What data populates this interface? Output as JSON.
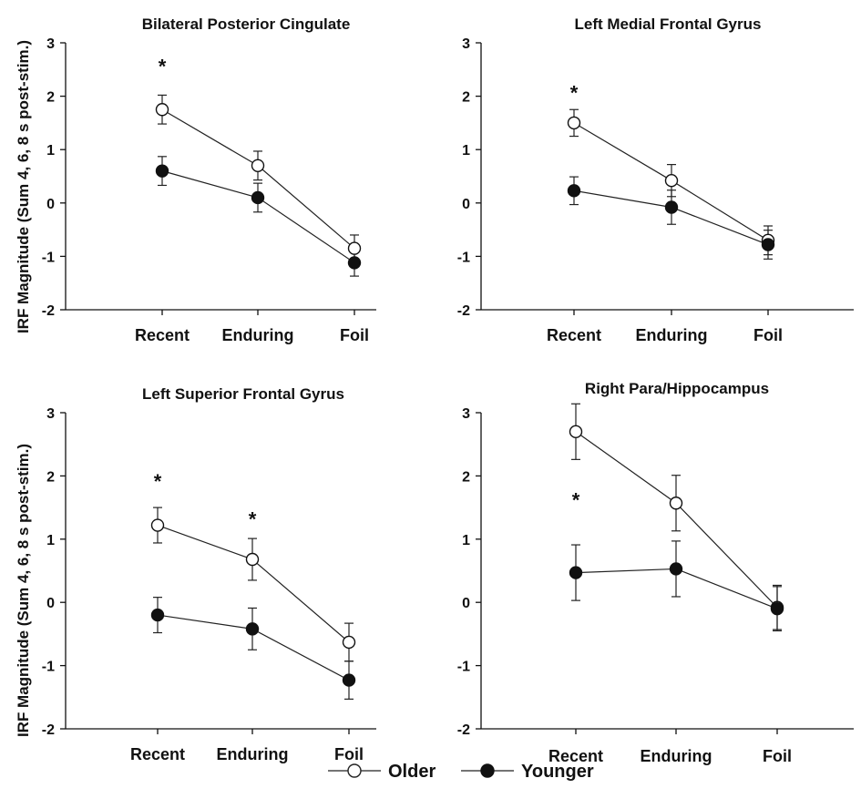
{
  "chart_data": {
    "type": "line",
    "ylabel": "IRF Magnitude (Sum 4, 6, 8 s post-stim.)",
    "ylim": [
      -2,
      3
    ],
    "yticks": [
      -2,
      -1,
      0,
      1,
      2,
      3
    ],
    "categories": [
      "Recent",
      "Enduring",
      "Foil"
    ],
    "legend": {
      "placement": "bottom-center",
      "entries": [
        "Older",
        "Younger"
      ]
    },
    "panels": [
      {
        "title": "Bilateral Posterior Cingulate",
        "series": [
          {
            "name": "Older",
            "marker": "open-circle",
            "values": [
              1.75,
              0.7,
              -0.85
            ],
            "errors": [
              0.27,
              0.27,
              0.25
            ]
          },
          {
            "name": "Younger",
            "marker": "filled-circle",
            "values": [
              0.6,
              0.1,
              -1.12
            ],
            "errors": [
              0.27,
              0.27,
              0.25
            ]
          }
        ],
        "annotations": [
          {
            "category": "Recent",
            "text": "*",
            "y": 2.6
          }
        ]
      },
      {
        "title": "Left Medial Frontal Gyrus",
        "series": [
          {
            "name": "Older",
            "marker": "open-circle",
            "values": [
              1.5,
              0.42,
              -0.7
            ],
            "errors": [
              0.25,
              0.3,
              0.27
            ]
          },
          {
            "name": "Younger",
            "marker": "filled-circle",
            "values": [
              0.23,
              -0.08,
              -0.78
            ],
            "errors": [
              0.26,
              0.32,
              0.27
            ]
          }
        ],
        "annotations": [
          {
            "category": "Recent",
            "text": "*",
            "y": 2.1
          }
        ]
      },
      {
        "title": "Left Superior Frontal Gyrus",
        "series": [
          {
            "name": "Older",
            "marker": "open-circle",
            "values": [
              1.22,
              0.68,
              -0.63
            ],
            "errors": [
              0.28,
              0.33,
              0.3
            ]
          },
          {
            "name": "Younger",
            "marker": "filled-circle",
            "values": [
              -0.2,
              -0.42,
              -1.23
            ],
            "errors": [
              0.28,
              0.33,
              0.3
            ]
          }
        ],
        "annotations": [
          {
            "category": "Recent",
            "text": "*",
            "y": 1.95
          },
          {
            "category": "Enduring",
            "text": "*",
            "y": 1.35
          }
        ]
      },
      {
        "title": "Right Para/Hippocampus",
        "series": [
          {
            "name": "Older",
            "marker": "open-circle",
            "values": [
              2.7,
              1.57,
              -0.08
            ],
            "errors": [
              0.44,
              0.44,
              0.35
            ]
          },
          {
            "name": "Younger",
            "marker": "filled-circle",
            "values": [
              0.47,
              0.53,
              -0.1
            ],
            "errors": [
              0.44,
              0.44,
              0.35
            ]
          }
        ],
        "annotations": [
          {
            "category": "Recent",
            "text": "*",
            "y": 1.65
          }
        ]
      }
    ]
  }
}
